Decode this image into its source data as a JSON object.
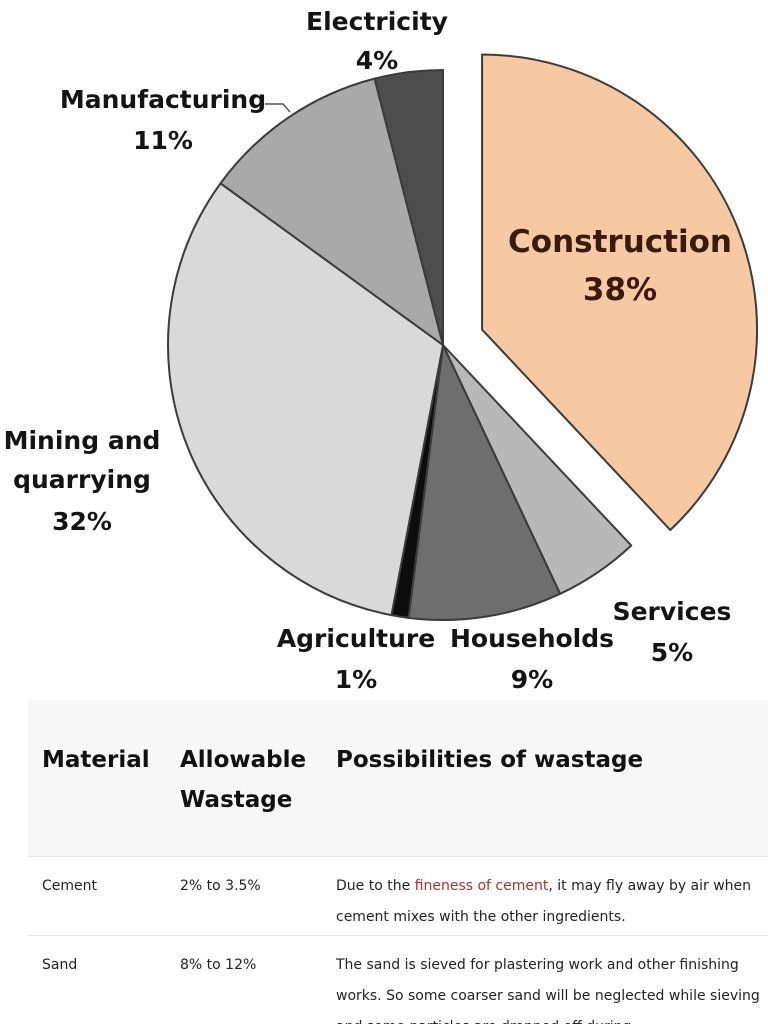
{
  "chart_data": {
    "type": "pie",
    "title": "",
    "slices": [
      {
        "label": "Construction",
        "value": 38,
        "value_label": "38%",
        "color": "#f6c9a3",
        "exploded": true
      },
      {
        "label": "Services",
        "value": 5,
        "value_label": "5%",
        "color": "#b8b8b8"
      },
      {
        "label": "Households",
        "value": 9,
        "value_label": "9%",
        "color": "#6e6e6e"
      },
      {
        "label": "Agriculture",
        "value": 1,
        "value_label": "1%",
        "color": "#0d0d0d"
      },
      {
        "label": "Mining and quarrying",
        "value": 32,
        "value_label": "32%",
        "color": "#d9d9d9"
      },
      {
        "label": "Manufacturing",
        "value": 11,
        "value_label": "11%",
        "color": "#a9a9a9"
      },
      {
        "label": "Electricity",
        "value": 4,
        "value_label": "4%",
        "color": "#4d4d4d"
      }
    ]
  },
  "table": {
    "headers": [
      "Material",
      "Allowable Wastage",
      "Possibilities of wastage"
    ],
    "rows": [
      {
        "material": "Cement",
        "allowable": "2% to 3.5%",
        "desc_before": "Due to the ",
        "desc_link": "fineness of cement",
        "desc_after": ", it may fly away by air when cement mixes with the other ingredients."
      },
      {
        "material": "Sand",
        "allowable": "8% to 12%",
        "desc_before": "The sand is sieved for plastering work and other finishing works. So some coarser sand will be neglected while sieving and some particles are dropped off during",
        "desc_link": "",
        "desc_after": ""
      }
    ]
  }
}
